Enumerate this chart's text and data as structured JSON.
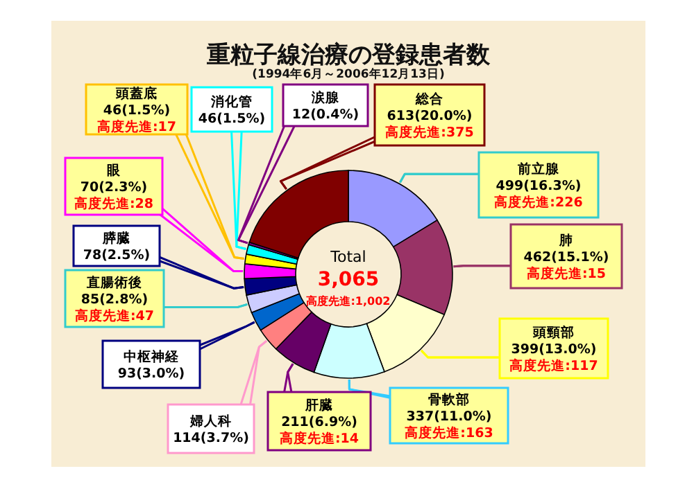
{
  "chart_data": {
    "type": "donut",
    "title": "重粒子線治療の登録患者数",
    "subtitle": "(1994年6月～2006年12月13日)",
    "categories": [
      "前立腺",
      "肺",
      "頭頸部",
      "骨軟部",
      "肝臓",
      "婦人科",
      "中枢神経",
      "直腸術後",
      "膵臓",
      "眼",
      "頭蓋底",
      "消化管",
      "涙腺",
      "総合"
    ],
    "values": [
      499,
      462,
      399,
      337,
      211,
      114,
      93,
      85,
      78,
      70,
      46,
      46,
      12,
      613
    ],
    "colors": [
      "#9999ff",
      "#993366",
      "#ffffcc",
      "#ccffff",
      "#660066",
      "#ff8080",
      "#0066cc",
      "#ccccff",
      "#000080",
      "#ff00ff",
      "#ffff00",
      "#00ffff",
      "#800080",
      "#800000"
    ],
    "value_labels": [
      "499(16.3%)",
      "462(15.1%)",
      "399(13.0%)",
      "337(11.0%)",
      "211(6.9%)",
      "114(3.7%)",
      "93(3.0%)",
      "85(2.8%)",
      "78(2.5%)",
      "70(2.3%)",
      "46(1.5%)",
      "46(1.5%)",
      "12(0.4%)",
      "613(20.0%)"
    ],
    "annotations": [
      "Total",
      "3,065",
      "高度先進:1,002",
      {
        "text": "高度先進:226",
        "x": "前立腺"
      },
      {
        "text": "高度先進:15",
        "x": "肺"
      },
      {
        "text": "高度先進:117",
        "x": "頭頸部"
      },
      {
        "text": "高度先進:163",
        "x": "骨軟部"
      },
      {
        "text": "高度先進:14",
        "x": "肝臓"
      },
      {
        "text": "高度先進:47",
        "x": "直腸術後"
      },
      {
        "text": "高度先進:28",
        "x": "眼"
      },
      {
        "text": "高度先進:17",
        "x": "頭蓋底"
      },
      {
        "text": "高度先進:375",
        "x": "総合"
      }
    ]
  }
}
